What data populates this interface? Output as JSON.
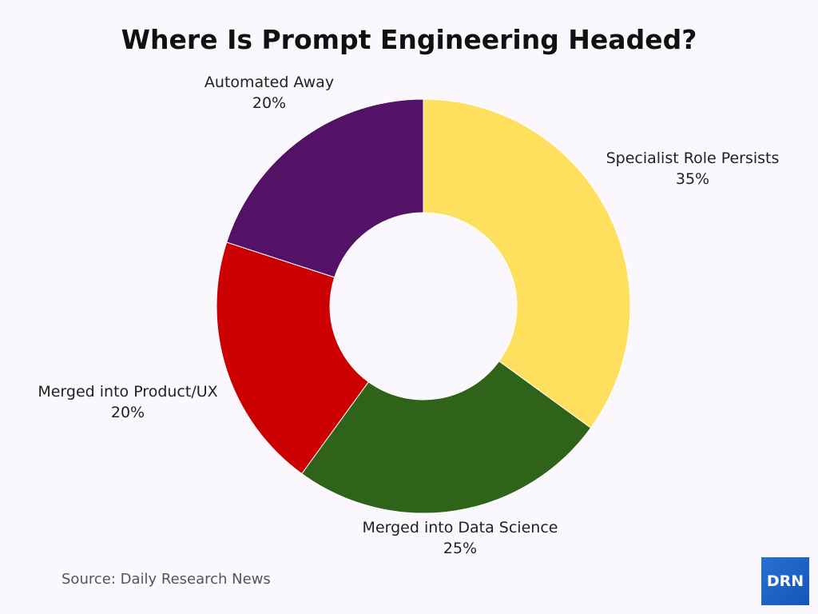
{
  "chart_data": {
    "type": "pie",
    "donut": true,
    "title": "Where Is Prompt Engineering Headed?",
    "categories": [
      "Specialist Role Persists",
      "Merged into Data Science",
      "Merged into Product/UX",
      "Automated Away"
    ],
    "values": [
      35,
      25,
      20,
      20
    ],
    "value_labels": [
      "35%",
      "25%",
      "20%",
      "20%"
    ],
    "colors": [
      "#FFDF5E",
      "#2F6319",
      "#CC0000",
      "#541266"
    ],
    "start": "top",
    "direction": "clockwise",
    "legend": "none"
  },
  "source": "Source: Daily Research News",
  "logo": "DRN"
}
